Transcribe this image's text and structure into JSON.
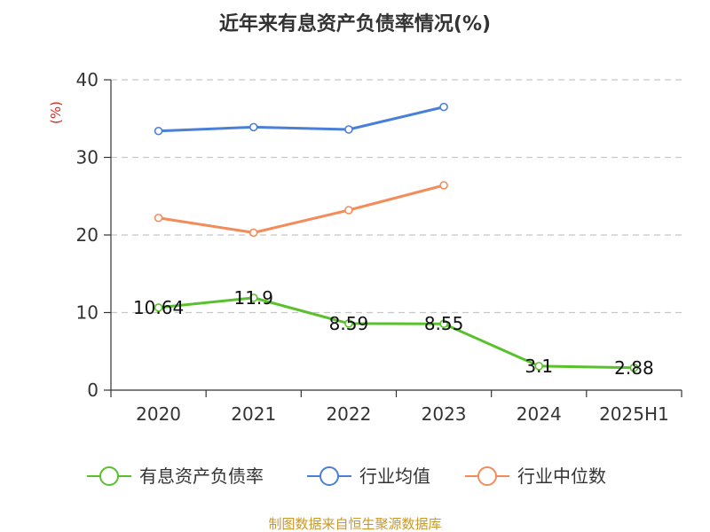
{
  "chart_data": {
    "type": "line",
    "title": "近年来有息资产负债率情况(%)",
    "ylabel": "(%)",
    "xlabel": "",
    "categories": [
      "2020",
      "2021",
      "2022",
      "2023",
      "2024",
      "2025H1"
    ],
    "y_ticks": [
      "0",
      "10",
      "20",
      "30",
      "40"
    ],
    "ylim": [
      0,
      40
    ],
    "grid": "horizontal dashed",
    "legend_position": "bottom",
    "series": [
      {
        "name": "有息资产负债率",
        "color": "#5ac12e",
        "values": [
          10.64,
          11.9,
          8.59,
          8.55,
          3.1,
          2.88
        ],
        "labels": [
          "10.64",
          "11.9",
          "8.59",
          "8.55",
          "3.1",
          "2.88"
        ]
      },
      {
        "name": "行业均值",
        "color": "#4a7fd8",
        "values": [
          33.4,
          33.9,
          33.6,
          36.5,
          null,
          null
        ]
      },
      {
        "name": "行业中位数",
        "color": "#f28c5a",
        "values": [
          22.2,
          20.3,
          23.2,
          26.4,
          null,
          null
        ]
      }
    ]
  },
  "footer": {
    "source": "制图数据来自恒生聚源数据库"
  }
}
